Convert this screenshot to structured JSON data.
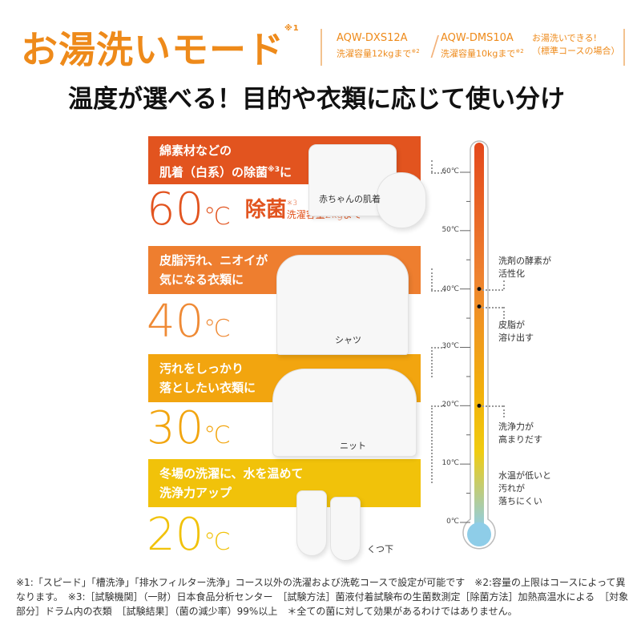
{
  "header": {
    "title": "お湯洗いモード",
    "title_note": "※1",
    "models": [
      {
        "name": "AQW-DXS12A",
        "capacity": "洗濯容量12kgまで",
        "note": "※2"
      },
      {
        "name": "AQW-DMS10A",
        "capacity": "洗濯容量10kgまで",
        "note": "※2"
      }
    ],
    "availability_line1": "お湯洗いできる!",
    "availability_line2": "（標準コースの場合）",
    "headline": "温度が選べる！目的や衣類に応じて使い分け"
  },
  "colors": {
    "title": "#ee8a1a",
    "t60": "#e2541f",
    "t40": "#ee7e2f",
    "t30": "#f2a50f",
    "t20": "#f1c20a",
    "bulb": "#8ecde8"
  },
  "modes": [
    {
      "line1": "綿素材などの",
      "line2": "肌着（白系）の除菌",
      "line2_note": "※3",
      "line2_end": "に",
      "temp": "60",
      "unit": "℃",
      "extra": "除菌",
      "extra_note": "※3",
      "extra_sub": "洗濯容量2kgまで",
      "item": "赤ちゃんの肌着"
    },
    {
      "line1": "皮脂汚れ、ニオイが",
      "line2": "気になる衣類に",
      "temp": "40",
      "unit": "℃",
      "item": "シャツ"
    },
    {
      "line1": "汚れをしっかり",
      "line2": "落としたい衣類に",
      "temp": "30",
      "unit": "℃",
      "item": "ニット"
    },
    {
      "line1": "冬場の洗濯に、水を温めて",
      "line2": "洗浄力アップ",
      "temp": "20",
      "unit": "℃",
      "item": "くつ下"
    }
  ],
  "thermometer": {
    "ticks": [
      "60℃",
      "50℃",
      "40℃",
      "30℃",
      "20℃",
      "10℃",
      "0℃"
    ],
    "annotations": [
      {
        "lines": [
          "洗剤の酵素が",
          "活性化"
        ],
        "temp": 40
      },
      {
        "lines": [
          "皮脂が",
          "溶け出す"
        ],
        "temp": 37
      },
      {
        "lines": [
          "洗浄力が",
          "高まりだす"
        ],
        "temp": 20
      },
      {
        "lines": [
          "水温が低いと",
          "汚れが",
          "落ちにくい"
        ]
      }
    ]
  },
  "footnotes": "※1:「スピード」「槽洗浄」「排水フィルター洗浄」コース以外の洗濯および洗乾コースで設定が可能です　※2:容量の上限はコースによって異なります。　※3:［試験機関］（一財）日本食品分析センター　［試験方法］菌液付着試験布の生菌数測定［除菌方法］加熱高温水による　［対象部分］ドラム内の衣類　［試験結果］（菌の減少率）99%以上　＊全ての菌に対して効果があるわけではありません。"
}
